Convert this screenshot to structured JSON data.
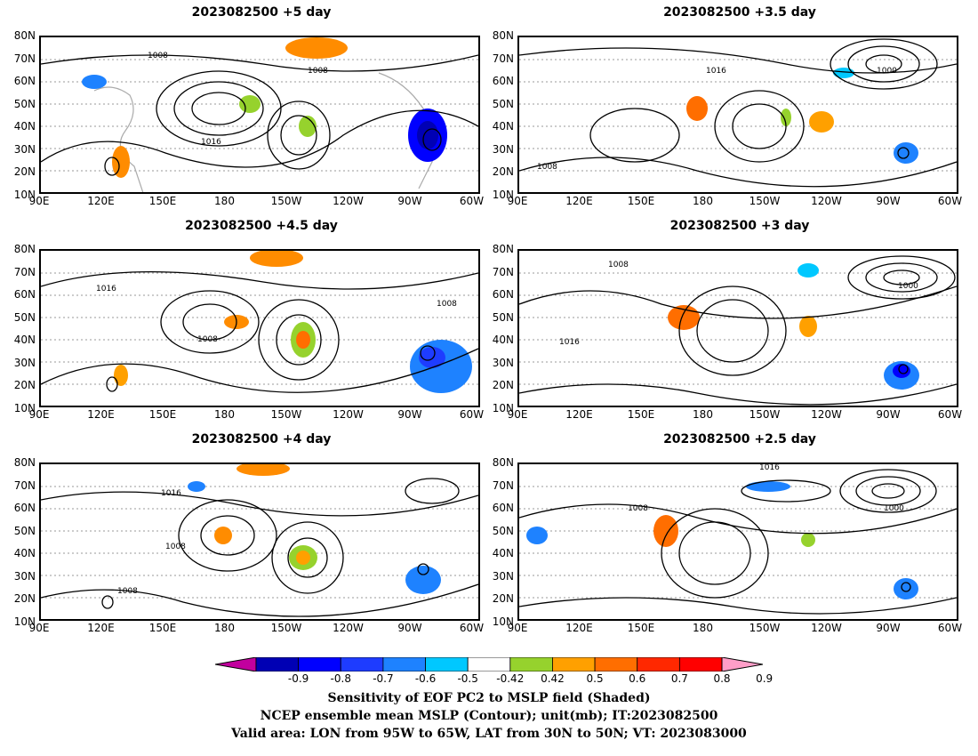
{
  "panels": [
    {
      "title": "2023082500 +5 day"
    },
    {
      "title": "2023082500 +3.5 day"
    },
    {
      "title": "2023082500 +4.5 day"
    },
    {
      "title": "2023082500 +3 day"
    },
    {
      "title": "2023082500 +4 day"
    },
    {
      "title": "2023082500 +2.5 day"
    }
  ],
  "axes": {
    "lat_labels": [
      "80N",
      "70N",
      "60N",
      "50N",
      "40N",
      "30N",
      "20N",
      "10N"
    ],
    "lon_labels": [
      "90E",
      "120E",
      "150E",
      "180",
      "150W",
      "120W",
      "90W",
      "60W"
    ]
  },
  "contour_label": {
    "a": "1008",
    "b": "1016",
    "c": "1000"
  },
  "colorbar": {
    "labels": [
      "-0.9",
      "-0.8",
      "-0.7",
      "-0.6",
      "-0.5",
      "-0.42",
      "0.42",
      "0.5",
      "0.6",
      "0.7",
      "0.8",
      "0.9"
    ],
    "colors": [
      "#c2009e",
      "#0000b4",
      "#0000ff",
      "#1e3cff",
      "#1e82ff",
      "#00c8ff",
      "#ffffff",
      "#96d22d",
      "#ffa000",
      "#ff6e00",
      "#ff2800",
      "#ff0000",
      "#ff9ec8"
    ]
  },
  "caption": {
    "line1": "Sensitivity of EOF PC2 to MSLP field (Shaded)",
    "line2": "NCEP ensemble mean MSLP (Contour); unit(mb); IT:2023082500",
    "line3": "Valid area: LON from 95W to 65W, LAT from 30N to 50N; VT: 2023083000"
  }
}
